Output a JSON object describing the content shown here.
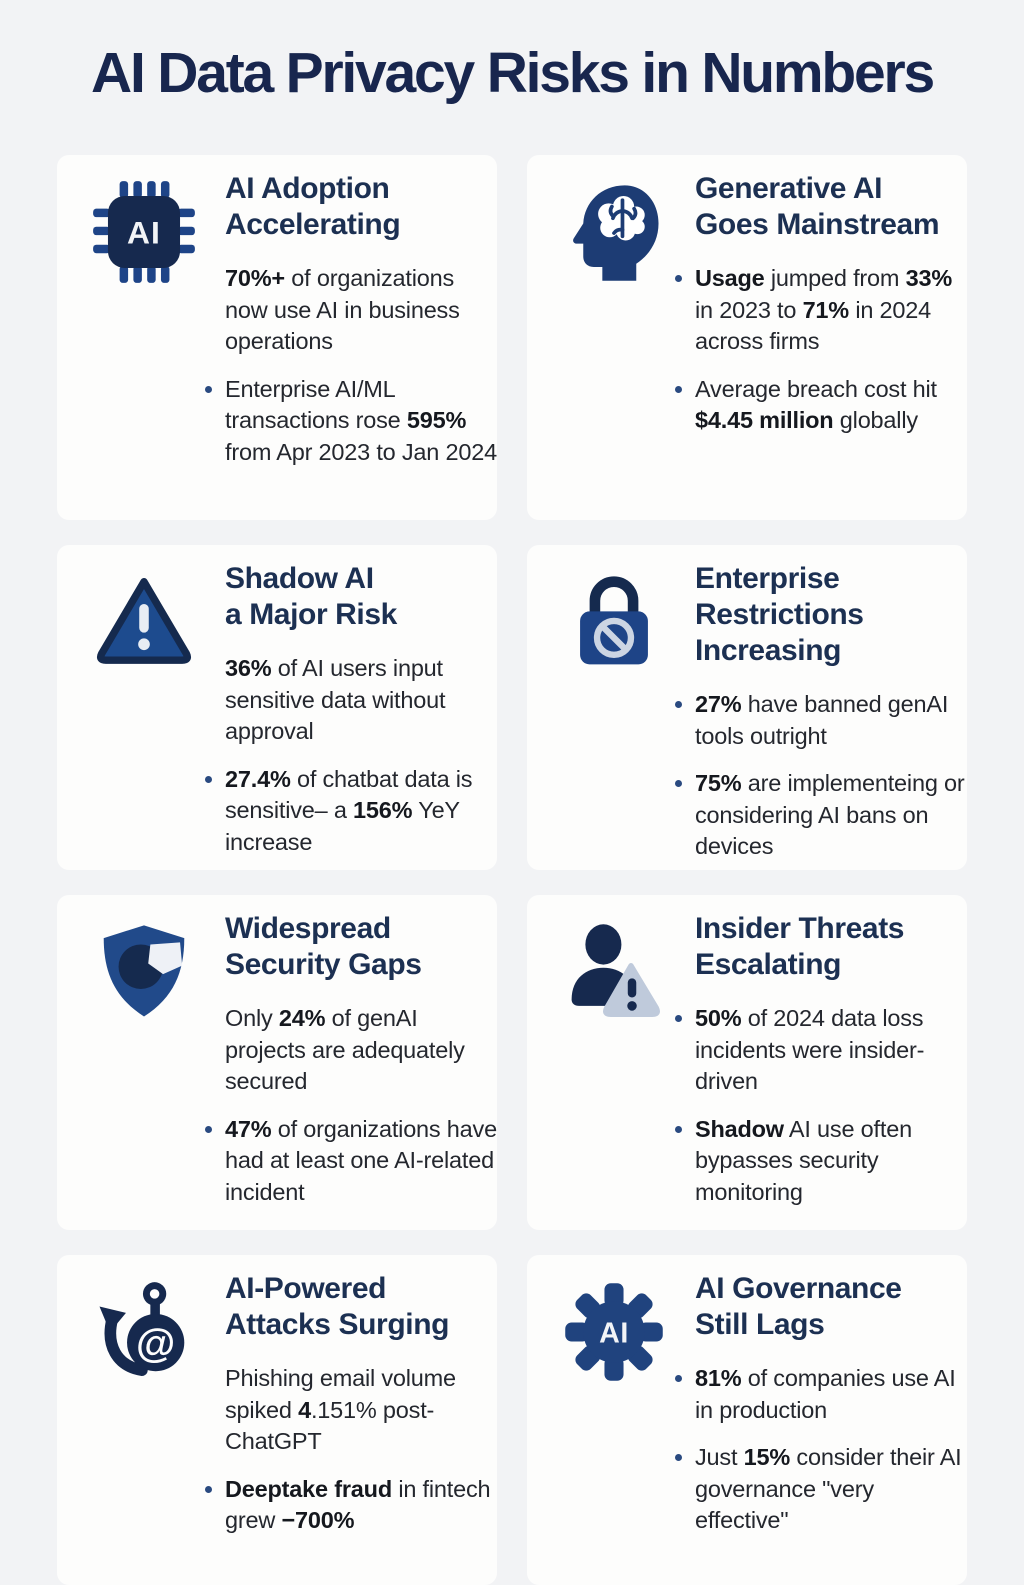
{
  "page_title": "AI Data Privacy Risks in Numbers",
  "colors": {
    "page_bg": "#f2f3f5",
    "card_bg": "#fdfdfc",
    "title": "#18264e",
    "heading": "#1c3052",
    "body": "#24272e",
    "bullet": "#2a4a80",
    "navy_dark": "#16294e",
    "navy_mid": "#1e4487",
    "triangle_fill": "#1d4b8e",
    "badge_light": "#bfcadb",
    "ban_light": "#ccd5e3",
    "icon_text": "#f2f4f7"
  },
  "cards": [
    {
      "id": "ai-adoption",
      "icon": "ai-chip",
      "icon_label": "AI",
      "title_lines": [
        "AI Adoption",
        "Accelerating"
      ],
      "items": [
        {
          "bullet": false,
          "segments": [
            {
              "t": "70%+",
              "b": true
            },
            {
              "t": " of organizations now use AI in business operations",
              "b": false
            }
          ]
        },
        {
          "bullet": true,
          "segments": [
            {
              "t": "Enterprise AI/ML transactions rose ",
              "b": false
            },
            {
              "t": "595%",
              "b": true
            },
            {
              "t": " from Apr 2023 to Jan 2024",
              "b": false
            }
          ]
        }
      ]
    },
    {
      "id": "genai-mainstream",
      "icon": "head-brain",
      "title_lines": [
        "Generative AI",
        "Goes Mainstream"
      ],
      "items": [
        {
          "bullet": true,
          "segments": [
            {
              "t": "Usage",
              "b": true
            },
            {
              "t": " jumped from ",
              "b": false
            },
            {
              "t": "33%",
              "b": true
            },
            {
              "t": " in 2023 to ",
              "b": false
            },
            {
              "t": "71%",
              "b": true
            },
            {
              "t": " in 2024 across firms",
              "b": false
            }
          ]
        },
        {
          "bullet": true,
          "segments": [
            {
              "t": "Average breach cost hit ",
              "b": false
            },
            {
              "t": "$4.45 million",
              "b": true
            },
            {
              "t": " globally",
              "b": false
            }
          ]
        }
      ]
    },
    {
      "id": "shadow-ai-risk",
      "icon": "warning-triangle",
      "title_lines": [
        "Shadow AI",
        "a Major Risk"
      ],
      "items": [
        {
          "bullet": false,
          "segments": [
            {
              "t": "36%",
              "b": true
            },
            {
              "t": " of AI users input sensitive data without approval",
              "b": false
            }
          ]
        },
        {
          "bullet": true,
          "segments": [
            {
              "t": "27.4%",
              "b": true
            },
            {
              "t": " of chatbat data is sensitive– a ",
              "b": false
            },
            {
              "t": "156%",
              "b": true
            },
            {
              "t": " YeY increase",
              "b": false
            }
          ]
        }
      ]
    },
    {
      "id": "enterprise-restrictions",
      "icon": "lock-ban",
      "title_lines": [
        "Enterprise",
        "Restrictions",
        "Increasing"
      ],
      "items": [
        {
          "bullet": true,
          "segments": [
            {
              "t": "27%",
              "b": true
            },
            {
              "t": " have banned genAI tools outright",
              "b": false
            }
          ]
        },
        {
          "bullet": true,
          "segments": [
            {
              "t": "75%",
              "b": true
            },
            {
              "t": " are implementeing or considering AI bans on devices",
              "b": false
            }
          ]
        }
      ]
    },
    {
      "id": "security-gaps",
      "icon": "shield-gap",
      "title_lines": [
        "Widespread",
        "Security Gaps"
      ],
      "items": [
        {
          "bullet": false,
          "segments": [
            {
              "t": "Only ",
              "b": false
            },
            {
              "t": "24%",
              "b": true
            },
            {
              "t": " of genAI projects are adequately secured",
              "b": false
            }
          ]
        },
        {
          "bullet": true,
          "segments": [
            {
              "t": "47%",
              "b": true
            },
            {
              "t": " of organizations have had at least one AI-related incident",
              "b": false
            }
          ]
        }
      ]
    },
    {
      "id": "insider-threats",
      "icon": "person-alert",
      "title_lines": [
        "Insider Threats",
        "Escalating"
      ],
      "items": [
        {
          "bullet": true,
          "segments": [
            {
              "t": "50%",
              "b": true
            },
            {
              "t": " of 2024 data loss incidents were insider-driven",
              "b": false
            }
          ]
        },
        {
          "bullet": true,
          "segments": [
            {
              "t": "Shadow",
              "b": true
            },
            {
              "t": " AI use often bypasses security monitoring",
              "b": false
            }
          ]
        }
      ]
    },
    {
      "id": "ai-attacks",
      "icon": "phishing-hook",
      "title_lines": [
        "AI-Powered",
        "Attacks Surging"
      ],
      "items": [
        {
          "bullet": false,
          "segments": [
            {
              "t": "Phishing email volume spiked ",
              "b": false
            },
            {
              "t": "4",
              "b": true
            },
            {
              "t": ".151% post-ChatGPT",
              "b": false
            }
          ]
        },
        {
          "bullet": true,
          "segments": [
            {
              "t": "Deeptake fraud",
              "b": true
            },
            {
              "t": " in fintech grew ",
              "b": false
            },
            {
              "t": "−700%",
              "b": true
            }
          ]
        }
      ]
    },
    {
      "id": "ai-governance",
      "icon": "gear-ai",
      "icon_label": "AI",
      "title_lines": [
        "AI Governance",
        "Still Lags"
      ],
      "items": [
        {
          "bullet": true,
          "segments": [
            {
              "t": "81%",
              "b": true
            },
            {
              "t": " of companies use AI in production",
              "b": false
            }
          ]
        },
        {
          "bullet": true,
          "segments": [
            {
              "t": "Just ",
              "b": false
            },
            {
              "t": "15%",
              "b": true
            },
            {
              "t": " consider their AI governance \"very effective\"",
              "b": false
            }
          ]
        }
      ]
    }
  ]
}
